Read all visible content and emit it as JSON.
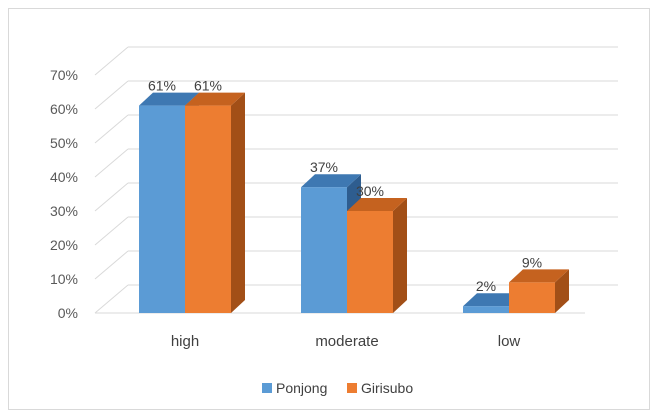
{
  "chart_data": {
    "type": "bar",
    "categories": [
      "high",
      "moderate",
      "low"
    ],
    "series": [
      {
        "name": "Ponjong",
        "values": [
          61,
          37,
          2
        ],
        "labels": [
          "61%",
          "37%",
          "2%"
        ]
      },
      {
        "name": "Girisubo",
        "values": [
          61,
          30,
          9
        ],
        "labels": [
          "61%",
          "30%",
          "9%"
        ]
      }
    ],
    "ylim": [
      0,
      70
    ],
    "y_ticks": [
      "0%",
      "10%",
      "20%",
      "30%",
      "40%",
      "50%",
      "60%",
      "70%"
    ],
    "grid": true,
    "legend_position": "bottom",
    "colors": {
      "Ponjong": {
        "front": "#5b9bd5",
        "top": "#3e78b2",
        "side": "#2e5d8f"
      },
      "Girisubo": {
        "front": "#ed7d31",
        "top": "#c5621f",
        "side": "#a24f17"
      },
      "grid": "#d9d9d9"
    }
  }
}
